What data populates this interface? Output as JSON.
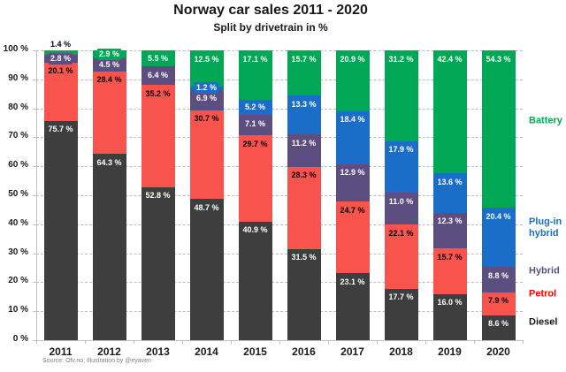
{
  "chart_data": {
    "type": "bar",
    "stacked": true,
    "title": "Norway car sales 2011 - 2020",
    "subtitle": "Split by drivetrain in %",
    "source_note": "Source: Ofv.no, Illustration by @eyaven",
    "categories": [
      "2011",
      "2012",
      "2013",
      "2014",
      "2015",
      "2016",
      "2017",
      "2018",
      "2019",
      "2020"
    ],
    "series": [
      {
        "name": "Diesel",
        "color": "#3e3e3e",
        "legend_color": "#1a1a1a",
        "label_text_color": "#ffffff",
        "values": [
          75.7,
          64.3,
          52.8,
          48.7,
          40.9,
          31.5,
          23.1,
          17.7,
          16.0,
          8.6
        ]
      },
      {
        "name": "Petrol",
        "color": "#f9534e",
        "legend_color": "#ff0000",
        "label_text_color": "#000000",
        "values": [
          20.1,
          28.4,
          35.2,
          30.7,
          29.7,
          28.3,
          24.7,
          22.1,
          15.7,
          7.9
        ]
      },
      {
        "name": "Hybrid",
        "color": "#5c4e7f",
        "legend_color": "#5c4e7f",
        "label_text_color": "#ffffff",
        "values": [
          2.8,
          4.5,
          6.4,
          6.9,
          7.1,
          11.2,
          12.9,
          11.0,
          12.3,
          8.8
        ]
      },
      {
        "name": "Plug-in hybrid",
        "color": "#1b6ec8",
        "legend_color": "#1b6ec8",
        "label_text_color": "#ffffff",
        "values": [
          0,
          0,
          0,
          1.2,
          5.2,
          13.3,
          18.4,
          17.9,
          13.6,
          20.4
        ]
      },
      {
        "name": "Battery",
        "color": "#00a755",
        "legend_color": "#00a755",
        "label_text_color": "#ffffff",
        "values": [
          1.4,
          2.9,
          5.5,
          12.5,
          17.1,
          15.7,
          20.9,
          31.2,
          42.4,
          54.3
        ]
      }
    ],
    "ylim": [
      0,
      100
    ],
    "ytick_step": 10,
    "ytick_labels": [
      "0 %",
      "10 %",
      "20 %",
      "30 %",
      "40 %",
      "50 %",
      "60 %",
      "70 %",
      "80 %",
      "90 %",
      "100 %"
    ],
    "value_label_suffix": " %",
    "grid": "horizontal-dashed",
    "legend_position": "right",
    "legend_order_top_to_bottom": [
      "Battery",
      "Plug-in hybrid",
      "Hybrid",
      "Petrol",
      "Diesel"
    ]
  }
}
